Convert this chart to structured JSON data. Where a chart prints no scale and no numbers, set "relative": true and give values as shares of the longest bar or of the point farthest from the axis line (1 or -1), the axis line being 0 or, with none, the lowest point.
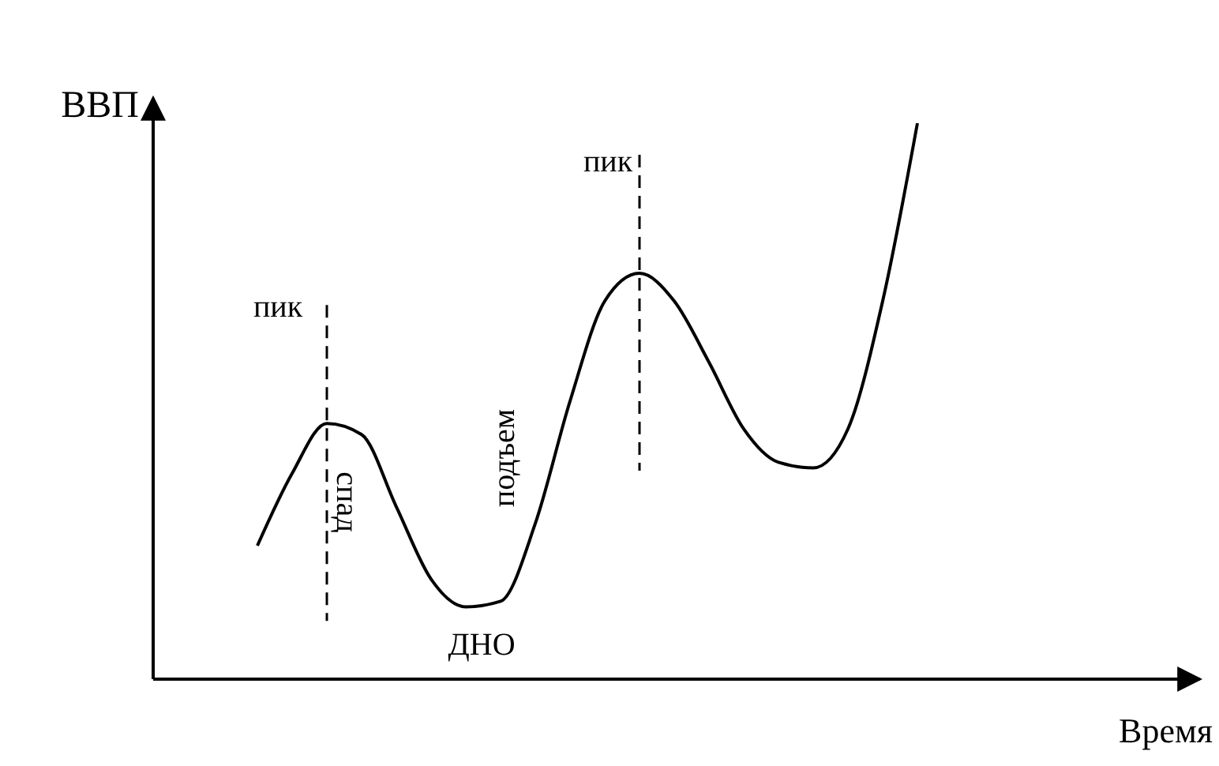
{
  "chart_data": {
    "type": "line",
    "relative": true,
    "xlabel": "Время",
    "ylabel": "ВВП",
    "line_style": "solid",
    "categories": [
      null,
      null,
      null,
      null,
      null,
      null,
      null,
      null,
      null,
      null,
      null,
      null,
      null,
      null,
      null,
      null,
      null,
      null,
      null,
      null,
      null,
      null,
      null,
      null,
      null,
      null,
      null,
      null,
      null,
      null,
      null
    ],
    "series": [
      {
        "color": "#000000",
        "values": [
          null,
          null,
          null,
          0.24,
          0.37,
          0.46,
          0.44,
          0.31,
          0.18,
          0.13,
          0.14,
          0.28,
          0.5,
          0.68,
          0.73,
          0.68,
          0.57,
          0.45,
          0.39,
          0.38,
          0.45,
          0.68,
          1,
          null,
          null,
          null,
          null,
          null,
          null,
          null,
          null
        ]
      }
    ],
    "annotations": [
      "пик",
      "пик",
      "спад",
      "подъем",
      "ДНО"
    ]
  }
}
